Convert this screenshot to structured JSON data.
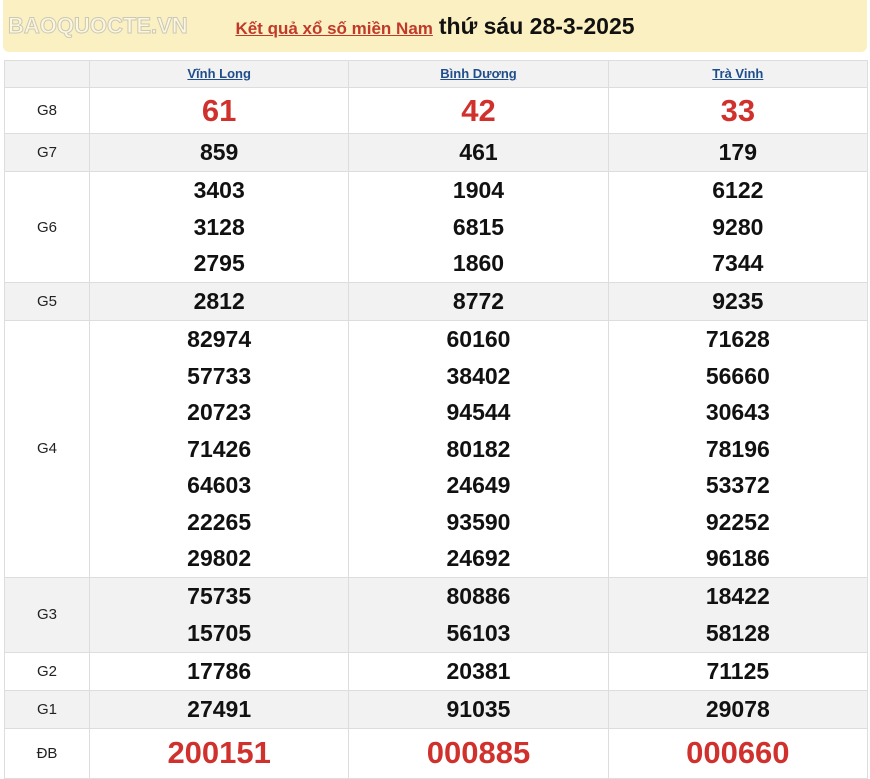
{
  "header": {
    "link": "Kết quả xổ số miền Nam",
    "date": "thứ sáu 28-3-2025"
  },
  "provinces": [
    "Vĩnh Long",
    "Bình Dương",
    "Trà Vinh"
  ],
  "prizes": [
    {
      "label": "G8",
      "values": [
        [
          "61"
        ],
        [
          "42"
        ],
        [
          "33"
        ]
      ]
    },
    {
      "label": "G7",
      "values": [
        [
          "859"
        ],
        [
          "461"
        ],
        [
          "179"
        ]
      ]
    },
    {
      "label": "G6",
      "values": [
        [
          "3403",
          "3128",
          "2795"
        ],
        [
          "1904",
          "6815",
          "1860"
        ],
        [
          "6122",
          "9280",
          "7344"
        ]
      ]
    },
    {
      "label": "G5",
      "values": [
        [
          "2812"
        ],
        [
          "8772"
        ],
        [
          "9235"
        ]
      ]
    },
    {
      "label": "G4",
      "values": [
        [
          "82974",
          "57733",
          "20723",
          "71426",
          "64603",
          "22265",
          "29802"
        ],
        [
          "60160",
          "38402",
          "94544",
          "80182",
          "24649",
          "93590",
          "24692"
        ],
        [
          "71628",
          "56660",
          "30643",
          "78196",
          "53372",
          "92252",
          "96186"
        ]
      ]
    },
    {
      "label": "G3",
      "values": [
        [
          "75735",
          "15705"
        ],
        [
          "80886",
          "56103"
        ],
        [
          "18422",
          "58128"
        ]
      ]
    },
    {
      "label": "G2",
      "values": [
        [
          "17786"
        ],
        [
          "20381"
        ],
        [
          "71125"
        ]
      ]
    },
    {
      "label": "G1",
      "values": [
        [
          "27491"
        ],
        [
          "91035"
        ],
        [
          "29078"
        ]
      ]
    },
    {
      "label": "ĐB",
      "values": [
        [
          "200151"
        ],
        [
          "000885"
        ],
        [
          "000660"
        ]
      ]
    }
  ],
  "watermark": "BAOQUOCTE.VN",
  "colors": {
    "banner": "#fbf0c1",
    "highlight": "#d0312d",
    "link": "#1f4e8c"
  }
}
